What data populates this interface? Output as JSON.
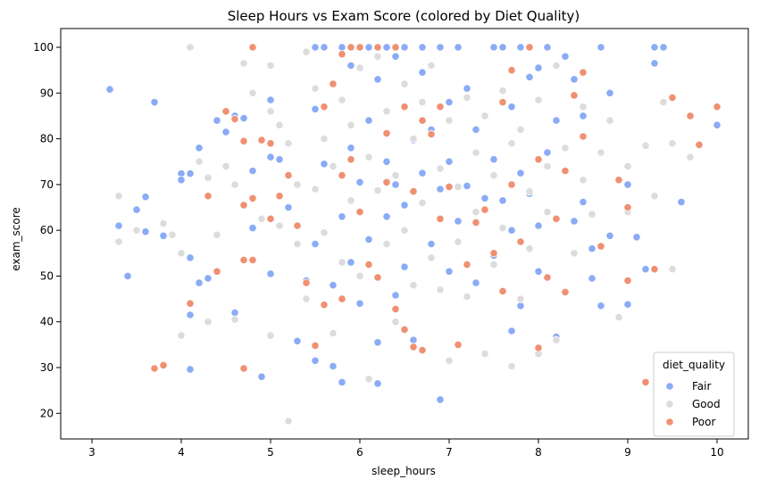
{
  "chart_data": {
    "type": "scatter",
    "title": "Sleep Hours vs Exam Score (colored by Diet Quality)",
    "xlabel": "sleep_hours",
    "ylabel": "exam_score",
    "xlim": [
      2.65,
      10.35
    ],
    "ylim": [
      14.4,
      104.1
    ],
    "xticks": [
      3,
      4,
      5,
      6,
      7,
      8,
      9,
      10
    ],
    "yticks": [
      20,
      30,
      40,
      50,
      60,
      70,
      80,
      90,
      100
    ],
    "grid": false,
    "legend": {
      "title": "diet_quality",
      "placement": "bottom-right"
    },
    "series": [
      {
        "name": "Fair",
        "color": "#8aabf5",
        "points": [
          [
            3.2,
            90.8
          ],
          [
            3.3,
            61
          ],
          [
            3.4,
            50
          ],
          [
            3.5,
            64.5
          ],
          [
            3.6,
            67.3
          ],
          [
            3.6,
            59.7
          ],
          [
            3.7,
            88
          ],
          [
            3.8,
            58.8
          ],
          [
            4.0,
            72.4
          ],
          [
            4.0,
            71
          ],
          [
            4.1,
            72.4
          ],
          [
            4.1,
            54
          ],
          [
            4.1,
            41.5
          ],
          [
            4.1,
            29.6
          ],
          [
            4.2,
            78
          ],
          [
            4.2,
            48.5
          ],
          [
            4.3,
            49.5
          ],
          [
            4.4,
            84
          ],
          [
            4.5,
            81.5
          ],
          [
            4.6,
            85
          ],
          [
            4.6,
            42
          ],
          [
            4.7,
            84.5
          ],
          [
            4.8,
            73
          ],
          [
            4.8,
            60.5
          ],
          [
            4.9,
            28
          ],
          [
            5.0,
            88.5
          ],
          [
            5.0,
            76
          ],
          [
            5.0,
            50.5
          ],
          [
            5.1,
            75.5
          ],
          [
            5.2,
            65
          ],
          [
            5.3,
            35.8
          ],
          [
            5.4,
            49
          ],
          [
            5.5,
            100
          ],
          [
            5.5,
            86.5
          ],
          [
            5.5,
            57
          ],
          [
            5.5,
            31.5
          ],
          [
            5.6,
            100
          ],
          [
            5.6,
            74.5
          ],
          [
            5.7,
            48
          ],
          [
            5.7,
            30.3
          ],
          [
            5.8,
            100
          ],
          [
            5.8,
            63
          ],
          [
            5.8,
            26.8
          ],
          [
            5.9,
            96
          ],
          [
            5.9,
            78
          ],
          [
            5.9,
            53
          ],
          [
            6.0,
            100
          ],
          [
            6.0,
            70.5
          ],
          [
            6.0,
            44
          ],
          [
            6.1,
            100
          ],
          [
            6.1,
            84
          ],
          [
            6.1,
            58
          ],
          [
            6.2,
            100
          ],
          [
            6.2,
            93
          ],
          [
            6.2,
            35.5
          ],
          [
            6.2,
            26.5
          ],
          [
            6.3,
            100
          ],
          [
            6.3,
            75
          ],
          [
            6.3,
            63
          ],
          [
            6.4,
            98
          ],
          [
            6.4,
            70
          ],
          [
            6.4,
            45.8
          ],
          [
            6.5,
            100
          ],
          [
            6.5,
            65.5
          ],
          [
            6.5,
            52
          ],
          [
            6.6,
            79.7
          ],
          [
            6.6,
            36
          ],
          [
            6.7,
            100
          ],
          [
            6.7,
            94.5
          ],
          [
            6.7,
            72.5
          ],
          [
            6.8,
            82
          ],
          [
            6.8,
            57
          ],
          [
            6.9,
            100
          ],
          [
            6.9,
            69
          ],
          [
            6.9,
            23
          ],
          [
            7.0,
            88
          ],
          [
            7.0,
            75
          ],
          [
            7.0,
            51
          ],
          [
            7.1,
            100
          ],
          [
            7.1,
            62
          ],
          [
            7.1,
            35
          ],
          [
            7.2,
            91
          ],
          [
            7.2,
            69.7
          ],
          [
            7.3,
            82
          ],
          [
            7.3,
            48.5
          ],
          [
            7.4,
            67
          ],
          [
            7.5,
            100
          ],
          [
            7.5,
            75.5
          ],
          [
            7.5,
            54.5
          ],
          [
            7.6,
            100
          ],
          [
            7.6,
            66.5
          ],
          [
            7.7,
            87
          ],
          [
            7.7,
            60
          ],
          [
            7.7,
            38
          ],
          [
            7.8,
            100
          ],
          [
            7.8,
            72.5
          ],
          [
            7.8,
            43.5
          ],
          [
            7.9,
            93.5
          ],
          [
            7.9,
            68
          ],
          [
            8.0,
            95.5
          ],
          [
            8.0,
            61
          ],
          [
            8.0,
            51
          ],
          [
            8.1,
            100
          ],
          [
            8.1,
            77
          ],
          [
            8.2,
            84
          ],
          [
            8.2,
            36.7
          ],
          [
            8.3,
            98
          ],
          [
            8.3,
            73
          ],
          [
            8.4,
            93
          ],
          [
            8.4,
            62
          ],
          [
            8.5,
            85
          ],
          [
            8.5,
            66.2
          ],
          [
            8.6,
            56
          ],
          [
            8.6,
            49.5
          ],
          [
            8.7,
            100
          ],
          [
            8.7,
            43.5
          ],
          [
            8.8,
            90
          ],
          [
            8.8,
            58.8
          ],
          [
            9.0,
            70
          ],
          [
            9.0,
            43.8
          ],
          [
            9.1,
            58.5
          ],
          [
            9.2,
            51.5
          ],
          [
            9.3,
            100
          ],
          [
            9.3,
            96.5
          ],
          [
            9.4,
            100
          ],
          [
            9.6,
            66.2
          ],
          [
            10.0,
            83
          ]
        ]
      },
      {
        "name": "Good",
        "color": "#dcdcdc",
        "points": [
          [
            3.3,
            67.5
          ],
          [
            3.3,
            57.5
          ],
          [
            3.5,
            60
          ],
          [
            3.8,
            61.5
          ],
          [
            3.9,
            59
          ],
          [
            4.0,
            55
          ],
          [
            4.0,
            37
          ],
          [
            4.1,
            100
          ],
          [
            4.2,
            75
          ],
          [
            4.3,
            71.5
          ],
          [
            4.3,
            40
          ],
          [
            4.4,
            59
          ],
          [
            4.5,
            74
          ],
          [
            4.6,
            70
          ],
          [
            4.6,
            40.5
          ],
          [
            4.7,
            96.5
          ],
          [
            4.8,
            90
          ],
          [
            4.9,
            62.5
          ],
          [
            5.0,
            96
          ],
          [
            5.0,
            86
          ],
          [
            5.0,
            37
          ],
          [
            5.1,
            83
          ],
          [
            5.1,
            61
          ],
          [
            5.2,
            79
          ],
          [
            5.2,
            18.3
          ],
          [
            5.3,
            70
          ],
          [
            5.3,
            57
          ],
          [
            5.4,
            99
          ],
          [
            5.4,
            45
          ],
          [
            5.5,
            91
          ],
          [
            5.5,
            69
          ],
          [
            5.6,
            80
          ],
          [
            5.6,
            59.5
          ],
          [
            5.7,
            74
          ],
          [
            5.7,
            37.5
          ],
          [
            5.8,
            88.5
          ],
          [
            5.8,
            53
          ],
          [
            5.9,
            83
          ],
          [
            5.9,
            66.5
          ],
          [
            6.0,
            95.5
          ],
          [
            6.0,
            50
          ],
          [
            6.1,
            76
          ],
          [
            6.1,
            27.5
          ],
          [
            6.2,
            98
          ],
          [
            6.2,
            68.7
          ],
          [
            6.3,
            86
          ],
          [
            6.3,
            57
          ],
          [
            6.4,
            72
          ],
          [
            6.4,
            40
          ],
          [
            6.5,
            92
          ],
          [
            6.5,
            60
          ],
          [
            6.6,
            80
          ],
          [
            6.6,
            48
          ],
          [
            6.7,
            88
          ],
          [
            6.7,
            66
          ],
          [
            6.8,
            96
          ],
          [
            6.8,
            54
          ],
          [
            6.9,
            73.5
          ],
          [
            6.9,
            47
          ],
          [
            7.0,
            84
          ],
          [
            7.0,
            31.5
          ],
          [
            7.1,
            69.5
          ],
          [
            7.1,
            57.5
          ],
          [
            7.2,
            89
          ],
          [
            7.2,
            45.5
          ],
          [
            7.3,
            77
          ],
          [
            7.3,
            64
          ],
          [
            7.4,
            85
          ],
          [
            7.4,
            33
          ],
          [
            7.5,
            72
          ],
          [
            7.5,
            52.5
          ],
          [
            7.6,
            90.5
          ],
          [
            7.6,
            60.5
          ],
          [
            7.7,
            79
          ],
          [
            7.7,
            30.3
          ],
          [
            7.8,
            82
          ],
          [
            7.8,
            45
          ],
          [
            7.9,
            68.5
          ],
          [
            7.9,
            56
          ],
          [
            8.0,
            88.5
          ],
          [
            8.0,
            33
          ],
          [
            8.1,
            74
          ],
          [
            8.1,
            64
          ],
          [
            8.2,
            96
          ],
          [
            8.2,
            36
          ],
          [
            8.3,
            78
          ],
          [
            8.4,
            55
          ],
          [
            8.5,
            87
          ],
          [
            8.5,
            71
          ],
          [
            8.6,
            63.5
          ],
          [
            8.7,
            77
          ],
          [
            8.8,
            84
          ],
          [
            8.9,
            41
          ],
          [
            9.0,
            64
          ],
          [
            9.0,
            74
          ],
          [
            9.2,
            78.5
          ],
          [
            9.3,
            67.5
          ],
          [
            9.4,
            88
          ],
          [
            9.5,
            79
          ],
          [
            9.5,
            51.5
          ],
          [
            9.8,
            78.5
          ],
          [
            9.7,
            76
          ]
        ]
      },
      {
        "name": "Poor",
        "color": "#ef9072",
        "points": [
          [
            3.7,
            29.8
          ],
          [
            3.8,
            30.5
          ],
          [
            4.1,
            44
          ],
          [
            4.3,
            67.5
          ],
          [
            4.4,
            51
          ],
          [
            4.5,
            86
          ],
          [
            4.6,
            84.3
          ],
          [
            4.7,
            79.5
          ],
          [
            4.7,
            65.5
          ],
          [
            4.7,
            53.5
          ],
          [
            4.7,
            29.8
          ],
          [
            4.8,
            100
          ],
          [
            4.8,
            67
          ],
          [
            4.8,
            53.5
          ],
          [
            4.9,
            79.7
          ],
          [
            5.0,
            62.5
          ],
          [
            5.0,
            79
          ],
          [
            5.1,
            67.5
          ],
          [
            5.2,
            72
          ],
          [
            5.3,
            61
          ],
          [
            5.4,
            48.5
          ],
          [
            5.5,
            34.8
          ],
          [
            5.6,
            87
          ],
          [
            5.6,
            43.7
          ],
          [
            5.7,
            92
          ],
          [
            5.8,
            98.5
          ],
          [
            5.8,
            72
          ],
          [
            5.8,
            45
          ],
          [
            5.9,
            100
          ],
          [
            5.9,
            75.5
          ],
          [
            6.0,
            100
          ],
          [
            6.0,
            64
          ],
          [
            6.1,
            52.5
          ],
          [
            6.2,
            100
          ],
          [
            6.2,
            49.7
          ],
          [
            6.3,
            81.2
          ],
          [
            6.3,
            70.5
          ],
          [
            6.4,
            100
          ],
          [
            6.4,
            42.8
          ],
          [
            6.5,
            87
          ],
          [
            6.5,
            38.3
          ],
          [
            6.6,
            68.5
          ],
          [
            6.6,
            34.5
          ],
          [
            6.7,
            84
          ],
          [
            6.7,
            33.8
          ],
          [
            6.8,
            81
          ],
          [
            6.9,
            87
          ],
          [
            6.9,
            62.5
          ],
          [
            7.0,
            69.5
          ],
          [
            7.1,
            35
          ],
          [
            7.2,
            52.5
          ],
          [
            7.3,
            61.7
          ],
          [
            7.4,
            64.5
          ],
          [
            7.5,
            55
          ],
          [
            7.6,
            88
          ],
          [
            7.6,
            46.7
          ],
          [
            7.7,
            95
          ],
          [
            7.7,
            70
          ],
          [
            7.8,
            57.5
          ],
          [
            7.9,
            100
          ],
          [
            8.0,
            75.5
          ],
          [
            8.0,
            34.3
          ],
          [
            8.1,
            49.7
          ],
          [
            8.2,
            62.5
          ],
          [
            8.3,
            73
          ],
          [
            8.3,
            46.5
          ],
          [
            8.4,
            89.5
          ],
          [
            8.5,
            94.5
          ],
          [
            8.5,
            80.5
          ],
          [
            8.7,
            56.5
          ],
          [
            8.9,
            71
          ],
          [
            9.0,
            65
          ],
          [
            9.0,
            49
          ],
          [
            9.2,
            26.8
          ],
          [
            9.3,
            51.5
          ],
          [
            9.5,
            89
          ],
          [
            9.7,
            85
          ],
          [
            9.8,
            78.7
          ],
          [
            10.0,
            87
          ]
        ]
      }
    ]
  }
}
